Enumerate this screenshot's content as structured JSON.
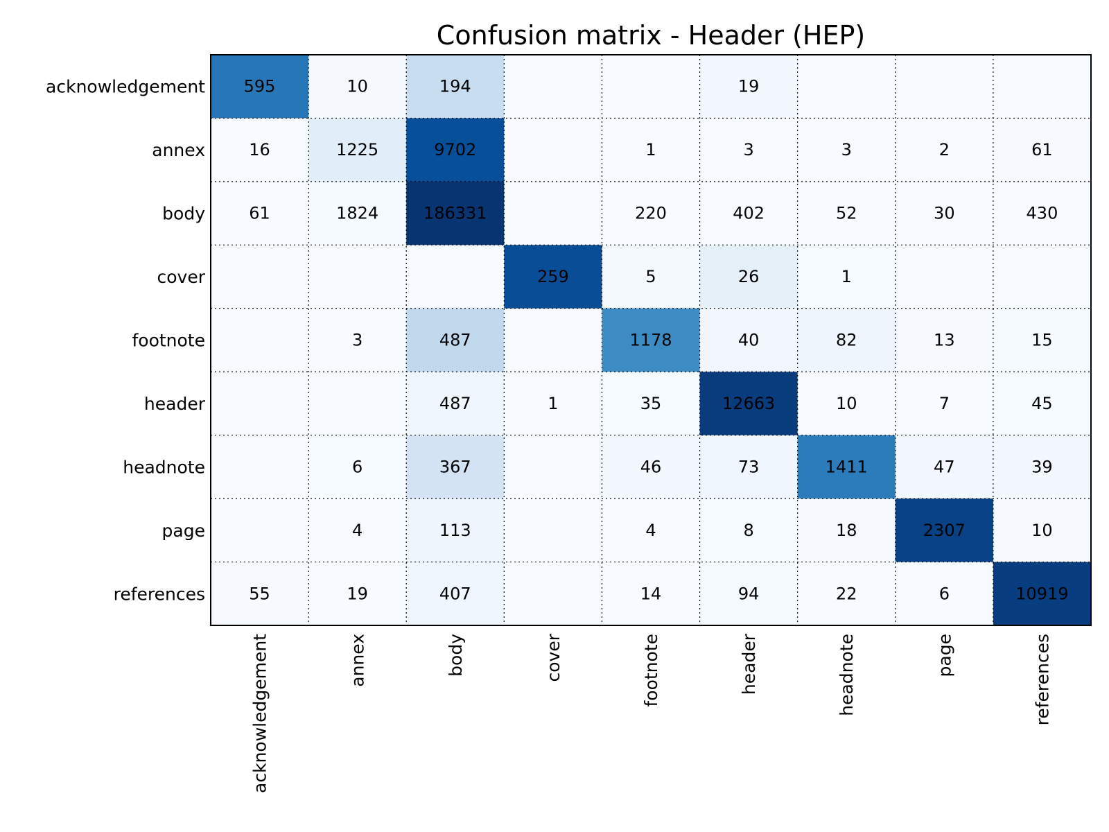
{
  "chart_data": {
    "type": "heatmap",
    "title": "Confusion matrix - Header (HEP)",
    "xlabel": "",
    "ylabel": "",
    "row_labels": [
      "acknowledgement",
      "annex",
      "body",
      "cover",
      "footnote",
      "header",
      "headnote",
      "page",
      "references"
    ],
    "col_labels": [
      "acknowledgement",
      "annex",
      "body",
      "cover",
      "footnote",
      "header",
      "headnote",
      "page",
      "references"
    ],
    "values": [
      [
        595,
        10,
        194,
        null,
        null,
        19,
        null,
        null,
        null
      ],
      [
        16,
        1225,
        9702,
        null,
        1,
        3,
        3,
        2,
        61
      ],
      [
        61,
        1824,
        186331,
        null,
        220,
        402,
        52,
        30,
        430
      ],
      [
        null,
        null,
        null,
        259,
        5,
        26,
        1,
        null,
        null
      ],
      [
        null,
        3,
        487,
        null,
        1178,
        40,
        82,
        13,
        15
      ],
      [
        null,
        null,
        487,
        1,
        35,
        12663,
        10,
        7,
        45
      ],
      [
        null,
        6,
        367,
        null,
        46,
        73,
        1411,
        47,
        39
      ],
      [
        null,
        4,
        113,
        null,
        4,
        8,
        18,
        2307,
        10
      ],
      [
        55,
        19,
        407,
        null,
        14,
        94,
        22,
        6,
        10919
      ]
    ],
    "colormap": "Blues",
    "color_normalization": "per-row",
    "grid": true,
    "legend": "none"
  }
}
